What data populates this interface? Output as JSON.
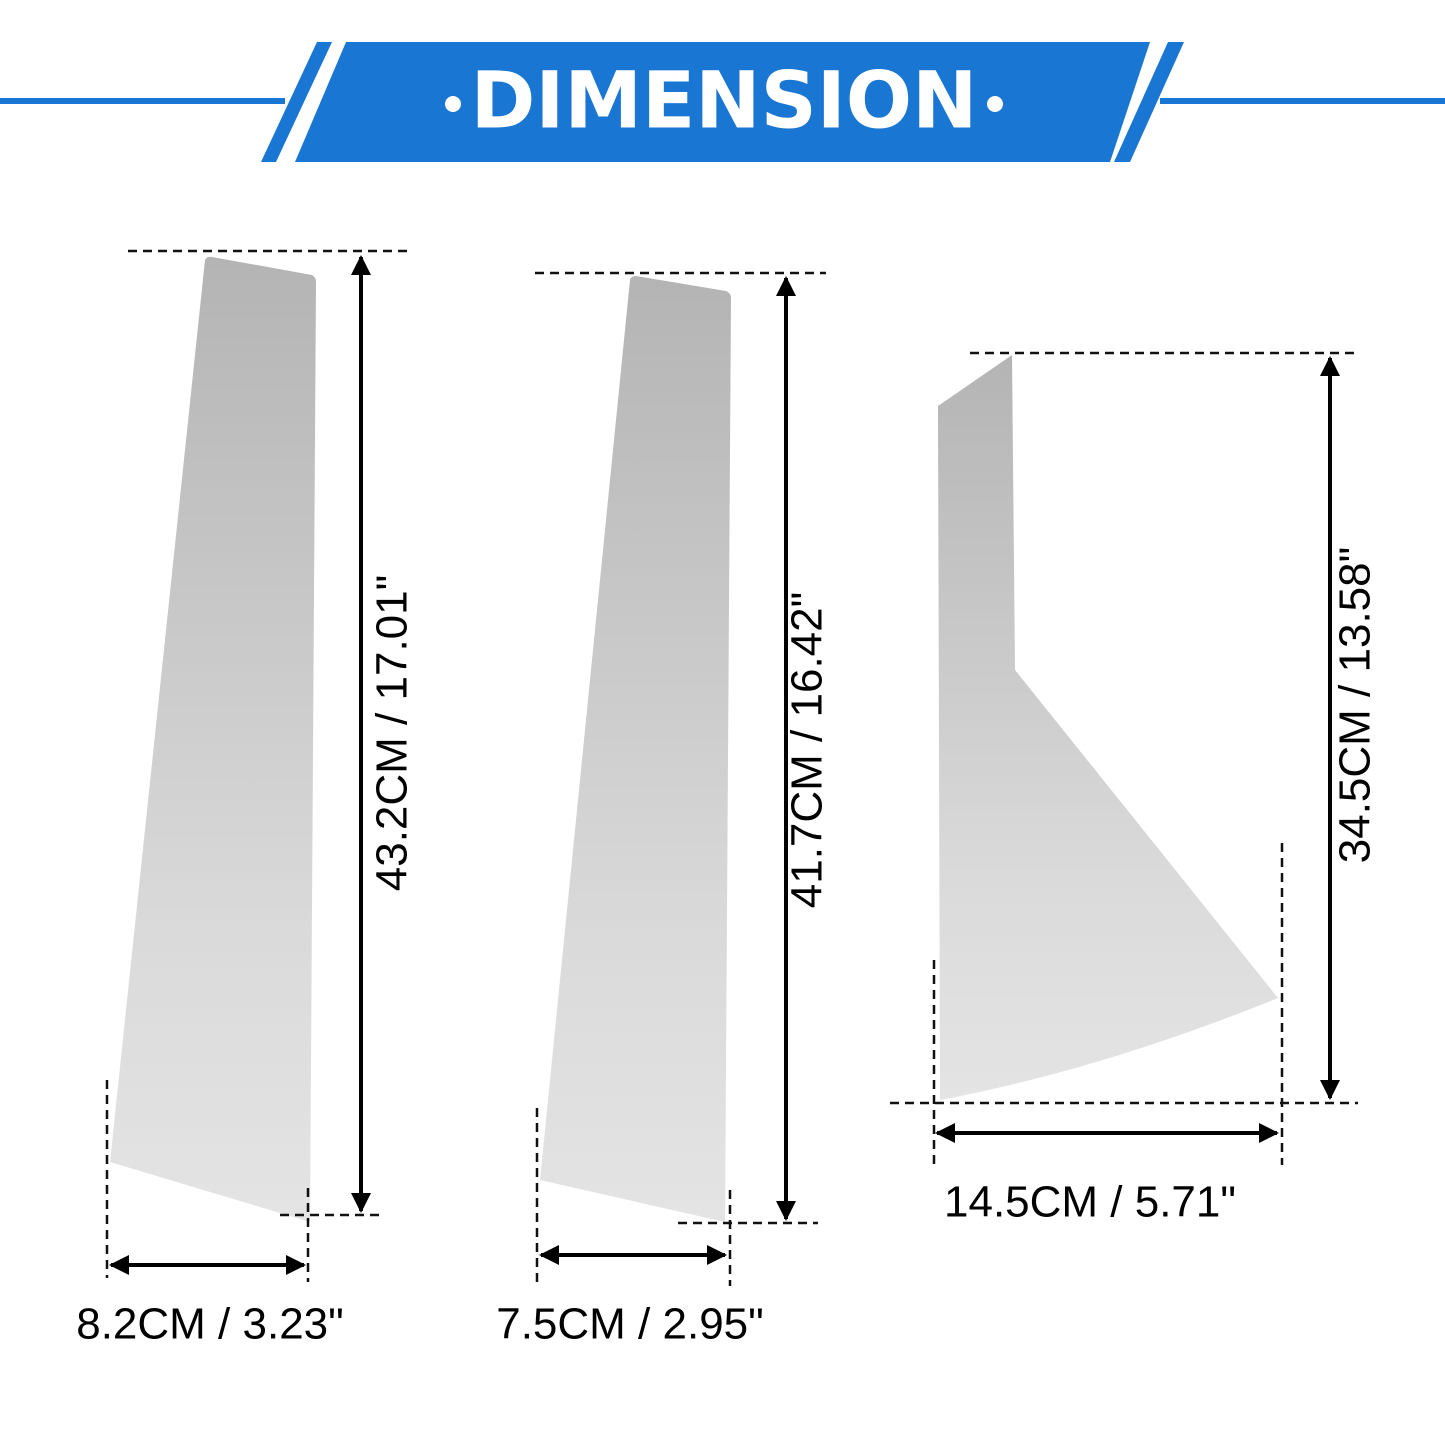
{
  "header": {
    "title": "DIMENSION"
  },
  "pieces": [
    {
      "height_label": "43.2CM / 17.01\"",
      "width_label": "8.2CM / 3.23\""
    },
    {
      "height_label": "41.7CM / 16.42\"",
      "width_label": "7.5CM / 2.95\""
    },
    {
      "height_label": "34.5CM / 13.58\"",
      "width_label": "14.5CM / 5.71\""
    }
  ]
}
